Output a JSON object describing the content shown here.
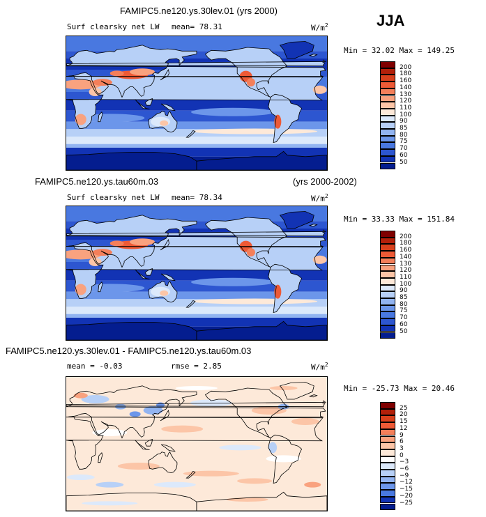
{
  "season": "JJA",
  "panels": [
    {
      "case_title": "FAMIPC5.ne120.ys.30lev.01 (yrs 2000)",
      "years": "",
      "variable": "Surf clearsky net LW",
      "mean_text": "mean=  78.31",
      "rmse_text": "",
      "units": "W/m",
      "units_exp": "2",
      "minmax_text": "Min =  32.02 Max = 149.25",
      "kind": "field",
      "levels": [
        "200",
        "180",
        "160",
        "140",
        "130",
        "120",
        "110",
        "100",
        "90",
        "85",
        "80",
        "75",
        "70",
        "60",
        "50"
      ],
      "colors": [
        "#7f0000",
        "#b2200a",
        "#d8401c",
        "#ee5a36",
        "#f47f5a",
        "#f9a27f",
        "#fcc5a7",
        "#fde9d9",
        "#dce9fb",
        "#b7d0f7",
        "#92b4f1",
        "#6c96ea",
        "#4978e0",
        "#2d56d0",
        "#1233b4",
        "#041d8f"
      ]
    },
    {
      "case_title": "FAMIPC5.ne120.ys.tau60m.03",
      "years": "(yrs 2000-2002)",
      "variable": "Surf clearsky net LW",
      "mean_text": "mean=  78.34",
      "rmse_text": "",
      "units": "W/m",
      "units_exp": "2",
      "minmax_text": "Min =  33.33 Max = 151.84",
      "kind": "field",
      "levels": [
        "200",
        "180",
        "160",
        "140",
        "130",
        "120",
        "110",
        "100",
        "90",
        "85",
        "80",
        "75",
        "70",
        "60",
        "50"
      ],
      "colors": [
        "#7f0000",
        "#b2200a",
        "#d8401c",
        "#ee5a36",
        "#f47f5a",
        "#f9a27f",
        "#fcc5a7",
        "#fde9d9",
        "#dce9fb",
        "#b7d0f7",
        "#92b4f1",
        "#6c96ea",
        "#4978e0",
        "#2d56d0",
        "#1233b4",
        "#041d8f"
      ]
    },
    {
      "case_title": "FAMIPC5.ne120.ys.30lev.01 - FAMIPC5.ne120.ys.tau60m.03",
      "years": "",
      "variable": "",
      "mean_text": "mean =  -0.03",
      "rmse_text": "rmse =   2.85",
      "units": "W/m",
      "units_exp": "2",
      "minmax_text": "Min = -25.73 Max =  20.46",
      "kind": "diff",
      "levels": [
        "25",
        "20",
        "15",
        "12",
        "9",
        "6",
        "3",
        "0",
        "−3",
        "−6",
        "−9",
        "−12",
        "−15",
        "−20",
        "−25"
      ],
      "colors": [
        "#7f0000",
        "#b2200a",
        "#d8401c",
        "#ee5a36",
        "#f47f5a",
        "#f9a27f",
        "#fcc5a7",
        "#fde9d9",
        "#ffffff",
        "#dce9fb",
        "#b7d0f7",
        "#92b4f1",
        "#6c96ea",
        "#4978e0",
        "#1233b4",
        "#041d8f"
      ]
    }
  ]
}
